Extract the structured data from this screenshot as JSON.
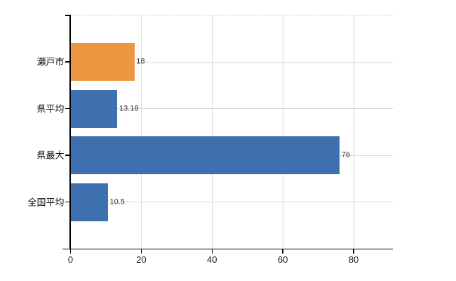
{
  "chart_data": {
    "type": "bar",
    "orientation": "horizontal",
    "title": "",
    "xlabel": "",
    "ylabel": "",
    "categories": [
      "瀬戸市",
      "県平均",
      "県最大",
      "全国平均"
    ],
    "values": [
      18,
      13.18,
      76,
      10.5
    ],
    "value_labels": [
      "18",
      "13.18",
      "76",
      "10.5"
    ],
    "bar_colors": [
      "#ED9540",
      "#3E6FAE",
      "#3E6FAE",
      "#3E6FAE"
    ],
    "highlighted_category": "瀬戸市",
    "x_ticks": [
      0,
      20,
      40,
      60,
      80
    ],
    "x_tick_labels": [
      "0",
      "20",
      "40",
      "60",
      "80"
    ],
    "xlim": [
      0,
      91.2
    ],
    "grid": true,
    "legend_position": "none",
    "colors": {
      "bar_blue": "#3E6FAE",
      "bar_orange": "#ED9540",
      "gridline": "#d9d9d9",
      "plot_border_dashed": "#cccccc",
      "axis": "#000000",
      "value_text": "#333333",
      "category_text": "#111111",
      "tick_text": "#222222",
      "background": "#ffffff"
    }
  }
}
